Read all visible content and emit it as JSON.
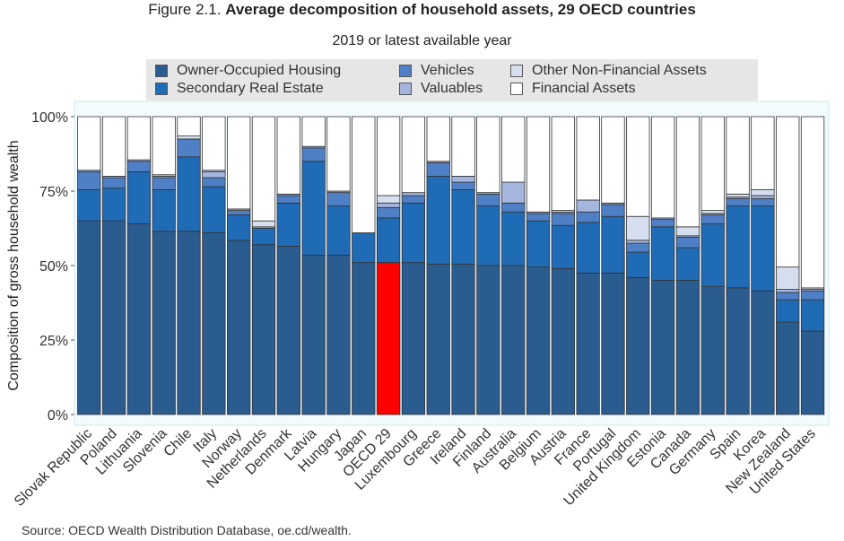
{
  "header": {
    "figure_label": "Figure 2.1.",
    "title": "Average decomposition of household assets, 29 OECD countries",
    "subtitle": "2019 or latest available year"
  },
  "source": "Source: OECD Wealth Distribution Database, oe.cd/wealth.",
  "chart_data": {
    "type": "bar",
    "stacked": true,
    "ylabel": "Composition of gross household wealth",
    "xlabel": "",
    "ylim": [
      0,
      100
    ],
    "yticks": [
      0,
      25,
      50,
      75,
      100
    ],
    "ytick_labels": [
      "0%",
      "25%",
      "50%",
      "75%",
      "100%"
    ],
    "legend_position": "top",
    "highlight_category": "OECD 29",
    "highlight_color": "#ff0000",
    "categories": [
      "Slovak Republic",
      "Poland",
      "Lithuania",
      "Slovenia",
      "Chile",
      "Italy",
      "Norway",
      "Netherlands",
      "Denmark",
      "Latvia",
      "Hungary",
      "Japan",
      "OECD 29",
      "Luxembourg",
      "Greece",
      "Ireland",
      "Finland",
      "Australia",
      "Belgium",
      "Austria",
      "France",
      "Portugal",
      "United Kingdom",
      "Estonia",
      "Canada",
      "Germany",
      "Spain",
      "Korea",
      "New Zealand",
      "United States"
    ],
    "series": [
      {
        "name": "Owner-Occupied Housing",
        "color": "#2b5c8f",
        "values": [
          65,
          65,
          64,
          61.5,
          61.5,
          61,
          58.5,
          57,
          56.5,
          53.5,
          53.5,
          51,
          51,
          51,
          50.5,
          50.5,
          50,
          50,
          49.5,
          49,
          47.5,
          47.5,
          46,
          45,
          45,
          43,
          42.5,
          41.5,
          31,
          28
        ]
      },
      {
        "name": "Secondary Real Estate",
        "color": "#1f6bb5",
        "values": [
          10.5,
          11,
          17.5,
          14,
          25,
          15.5,
          8.5,
          5.5,
          14.5,
          31.5,
          16.5,
          10,
          15,
          20,
          29.5,
          25,
          20,
          18,
          15.5,
          14.5,
          17,
          19,
          8.5,
          18,
          11,
          21,
          27.5,
          28.5,
          7.5,
          10.5
        ]
      },
      {
        "name": "Vehicles",
        "color": "#4f7fc4",
        "values": [
          6,
          3.5,
          3.5,
          4,
          6,
          3,
          1.5,
          0,
          2.5,
          4.5,
          4.5,
          0,
          3.5,
          2.5,
          4.5,
          2.5,
          4,
          3,
          2.5,
          4,
          3.5,
          4,
          3,
          2.5,
          3.5,
          3,
          2.5,
          2.5,
          2.5,
          3
        ]
      },
      {
        "name": "Valuables",
        "color": "#a5b5de",
        "values": [
          0.5,
          0.5,
          0.5,
          0.5,
          0,
          2,
          0.5,
          0.5,
          0.5,
          0.5,
          0.5,
          0,
          1.5,
          1,
          0.5,
          2,
          0.5,
          7,
          0.5,
          0.5,
          4,
          0.5,
          1,
          0.5,
          0.5,
          0.5,
          0.5,
          1,
          1,
          0.5
        ]
      },
      {
        "name": "Other Non-Financial Assets",
        "color": "#d6dff0",
        "values": [
          0,
          0,
          0,
          0.5,
          1,
          0.5,
          0,
          2,
          0,
          0,
          0,
          0,
          2.5,
          0,
          0,
          0,
          0,
          0,
          0,
          0.5,
          0,
          0,
          8,
          0,
          3,
          1,
          1,
          2,
          7.5,
          0.5
        ]
      },
      {
        "name": "Financial Assets",
        "color": "#ffffff",
        "values": [
          18,
          20,
          14.5,
          19.5,
          6.5,
          18,
          31,
          35,
          26,
          10,
          25,
          39,
          26.5,
          25.5,
          15,
          20,
          25.5,
          22,
          32,
          31.5,
          28,
          29,
          33.5,
          34,
          37,
          31.5,
          26,
          24.5,
          50.5,
          57.5
        ]
      }
    ]
  }
}
